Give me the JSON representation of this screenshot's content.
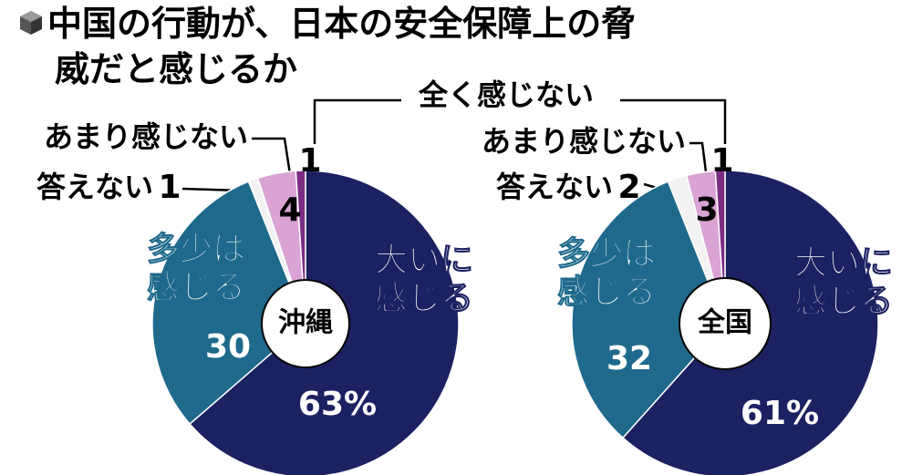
{
  "title": "中国の行動が、日本の安全保障上の脅威だと感じるか",
  "chart_data": [
    {
      "type": "pie",
      "label": "沖縄",
      "categories": [
        "大いに感じる",
        "多少は感じる",
        "答えない",
        "あまり感じない",
        "全く感じない"
      ],
      "values": [
        63,
        30,
        1,
        4,
        1
      ],
      "value_labels": [
        "63%",
        "30",
        "1",
        "4",
        "1"
      ],
      "colors": [
        "#1b2161",
        "#1f6a8c",
        "#f2f2f2",
        "#d9a3d3",
        "#7b2c84"
      ]
    },
    {
      "type": "pie",
      "label": "全国",
      "categories": [
        "大いに感じる",
        "多少は感じる",
        "答えない",
        "あまり感じない",
        null
      ],
      "values": [
        61,
        32,
        2,
        3,
        1
      ],
      "value_labels": [
        "61%",
        "32",
        "2",
        "3",
        "1"
      ],
      "colors": [
        "#1b2161",
        "#1f6a8c",
        "#f2f2f2",
        "#d9a3d3",
        "#7b2c84"
      ]
    }
  ]
}
